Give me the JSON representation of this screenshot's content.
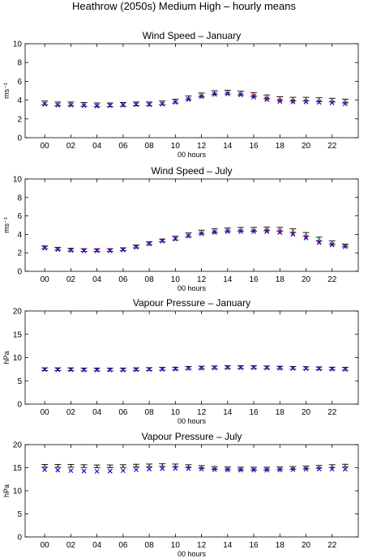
{
  "figure_title": "Heathrow (2050s) Medium High – hourly means",
  "colors": {
    "errorbar": "#000000",
    "red_marker": "#ff0000",
    "blue_marker": "#0000ff"
  },
  "chart_data": [
    {
      "type": "scatter",
      "title": "Wind Speed – January",
      "xlabel": "00 hours",
      "ylabel": "ms⁻¹",
      "ylim": [
        0,
        10
      ],
      "yticks": [
        0,
        2,
        4,
        6,
        8,
        10
      ],
      "xticks": [
        "00",
        "02",
        "04",
        "06",
        "08",
        "10",
        "12",
        "14",
        "16",
        "18",
        "20",
        "22"
      ],
      "x": [
        0,
        1,
        2,
        3,
        4,
        5,
        6,
        7,
        8,
        9,
        10,
        11,
        12,
        13,
        14,
        15,
        16,
        17,
        18,
        19,
        20,
        21,
        22,
        23
      ],
      "mean": [
        3.7,
        3.6,
        3.6,
        3.55,
        3.5,
        3.5,
        3.55,
        3.6,
        3.6,
        3.7,
        3.9,
        4.25,
        4.55,
        4.8,
        4.85,
        4.75,
        4.6,
        4.35,
        4.15,
        4.1,
        4.1,
        4.05,
        4.0,
        3.9
      ],
      "err": [
        0.2,
        0.2,
        0.2,
        0.2,
        0.2,
        0.2,
        0.2,
        0.2,
        0.2,
        0.2,
        0.2,
        0.2,
        0.2,
        0.2,
        0.2,
        0.2,
        0.2,
        0.2,
        0.2,
        0.2,
        0.2,
        0.2,
        0.2,
        0.2
      ],
      "red": [
        3.6,
        3.5,
        3.5,
        3.45,
        3.4,
        3.45,
        3.5,
        3.55,
        3.55,
        3.6,
        3.8,
        4.1,
        4.4,
        4.65,
        4.7,
        4.6,
        4.45,
        4.15,
        3.95,
        3.9,
        3.85,
        3.8,
        3.75,
        3.65
      ],
      "blue": [
        3.55,
        3.45,
        3.45,
        3.4,
        3.35,
        3.4,
        3.45,
        3.5,
        3.5,
        3.55,
        3.75,
        4.05,
        4.35,
        4.6,
        4.65,
        4.55,
        4.3,
        4.05,
        3.85,
        3.8,
        3.8,
        3.75,
        3.7,
        3.6
      ]
    },
    {
      "type": "scatter",
      "title": "Wind Speed – July",
      "xlabel": "00 hours",
      "ylabel": "ms⁻¹",
      "ylim": [
        0,
        10
      ],
      "yticks": [
        0,
        2,
        4,
        6,
        8,
        10
      ],
      "xticks": [
        "00",
        "02",
        "04",
        "06",
        "08",
        "10",
        "12",
        "14",
        "16",
        "18",
        "20",
        "22"
      ],
      "x": [
        0,
        1,
        2,
        3,
        4,
        5,
        6,
        7,
        8,
        9,
        10,
        11,
        12,
        13,
        14,
        15,
        16,
        17,
        18,
        19,
        20,
        21,
        22,
        23
      ],
      "mean": [
        2.6,
        2.45,
        2.35,
        2.3,
        2.3,
        2.3,
        2.4,
        2.7,
        3.05,
        3.35,
        3.6,
        3.95,
        4.25,
        4.4,
        4.5,
        4.55,
        4.55,
        4.6,
        4.55,
        4.4,
        4.0,
        3.5,
        3.1,
        2.8
      ],
      "err": [
        0.15,
        0.15,
        0.15,
        0.15,
        0.15,
        0.15,
        0.15,
        0.15,
        0.15,
        0.15,
        0.2,
        0.2,
        0.2,
        0.2,
        0.2,
        0.2,
        0.2,
        0.2,
        0.2,
        0.2,
        0.2,
        0.2,
        0.2,
        0.15
      ],
      "red": [
        2.55,
        2.4,
        2.3,
        2.25,
        2.25,
        2.25,
        2.35,
        2.65,
        3.0,
        3.3,
        3.55,
        3.85,
        4.1,
        4.25,
        4.35,
        4.35,
        4.35,
        4.4,
        4.3,
        4.1,
        3.7,
        3.2,
        2.9,
        2.7
      ],
      "blue": [
        2.5,
        2.35,
        2.25,
        2.2,
        2.2,
        2.2,
        2.3,
        2.6,
        2.95,
        3.25,
        3.5,
        3.8,
        4.05,
        4.2,
        4.3,
        4.3,
        4.3,
        4.3,
        4.2,
        4.0,
        3.6,
        3.1,
        2.85,
        2.65
      ]
    },
    {
      "type": "scatter",
      "title": "Vapour Pressure – January",
      "xlabel": "00 hours",
      "ylabel": "hPa",
      "ylim": [
        0,
        20
      ],
      "yticks": [
        0,
        5,
        10,
        15,
        20
      ],
      "xticks": [
        "00",
        "02",
        "04",
        "06",
        "08",
        "10",
        "12",
        "14",
        "16",
        "18",
        "20",
        "22"
      ],
      "x": [
        0,
        1,
        2,
        3,
        4,
        5,
        6,
        7,
        8,
        9,
        10,
        11,
        12,
        13,
        14,
        15,
        16,
        17,
        18,
        19,
        20,
        21,
        22,
        23
      ],
      "mean": [
        7.5,
        7.5,
        7.5,
        7.45,
        7.45,
        7.45,
        7.45,
        7.5,
        7.55,
        7.6,
        7.65,
        7.8,
        7.85,
        7.9,
        7.95,
        7.95,
        7.95,
        7.9,
        7.85,
        7.8,
        7.75,
        7.7,
        7.65,
        7.6
      ],
      "err": [
        0.3,
        0.3,
        0.3,
        0.3,
        0.3,
        0.3,
        0.3,
        0.3,
        0.3,
        0.3,
        0.3,
        0.3,
        0.3,
        0.3,
        0.3,
        0.3,
        0.3,
        0.3,
        0.3,
        0.3,
        0.3,
        0.3,
        0.3,
        0.3
      ],
      "red": [
        7.45,
        7.4,
        7.4,
        7.35,
        7.35,
        7.35,
        7.35,
        7.4,
        7.45,
        7.5,
        7.55,
        7.7,
        7.75,
        7.8,
        7.85,
        7.85,
        7.85,
        7.8,
        7.75,
        7.7,
        7.65,
        7.6,
        7.55,
        7.5
      ],
      "blue": [
        7.4,
        7.35,
        7.35,
        7.3,
        7.3,
        7.3,
        7.3,
        7.35,
        7.4,
        7.45,
        7.5,
        7.65,
        7.7,
        7.75,
        7.8,
        7.8,
        7.8,
        7.75,
        7.7,
        7.65,
        7.6,
        7.55,
        7.5,
        7.45
      ]
    },
    {
      "type": "scatter",
      "title": "Vapour Pressure – July",
      "xlabel": "00 hours",
      "ylabel": "hPa",
      "ylim": [
        0,
        20
      ],
      "yticks": [
        0,
        5,
        10,
        15,
        20
      ],
      "xticks": [
        "00",
        "02",
        "04",
        "06",
        "08",
        "10",
        "12",
        "14",
        "16",
        "18",
        "20",
        "22"
      ],
      "x": [
        0,
        1,
        2,
        3,
        4,
        5,
        6,
        7,
        8,
        9,
        10,
        11,
        12,
        13,
        14,
        15,
        16,
        17,
        18,
        19,
        20,
        21,
        22,
        23
      ],
      "mean": [
        15.4,
        15.4,
        15.4,
        15.35,
        15.3,
        15.3,
        15.35,
        15.45,
        15.5,
        15.55,
        15.5,
        15.35,
        15.15,
        14.95,
        14.85,
        14.8,
        14.8,
        14.8,
        14.85,
        14.95,
        15.05,
        15.2,
        15.35,
        15.45
      ],
      "err": [
        0.3,
        0.3,
        0.3,
        0.3,
        0.3,
        0.3,
        0.3,
        0.3,
        0.3,
        0.3,
        0.3,
        0.3,
        0.3,
        0.3,
        0.3,
        0.3,
        0.3,
        0.3,
        0.3,
        0.3,
        0.3,
        0.3,
        0.3,
        0.3
      ],
      "red": [
        14.6,
        14.5,
        14.4,
        14.3,
        14.25,
        14.3,
        14.4,
        14.6,
        14.75,
        14.85,
        14.9,
        14.85,
        14.75,
        14.6,
        14.55,
        14.5,
        14.5,
        14.5,
        14.55,
        14.6,
        14.7,
        14.75,
        14.75,
        14.7
      ],
      "blue": [
        14.55,
        14.45,
        14.35,
        14.25,
        14.2,
        14.25,
        14.35,
        14.55,
        14.7,
        14.8,
        14.85,
        14.8,
        14.7,
        14.55,
        14.5,
        14.45,
        14.45,
        14.45,
        14.5,
        14.55,
        14.65,
        14.7,
        14.7,
        14.65
      ]
    }
  ]
}
